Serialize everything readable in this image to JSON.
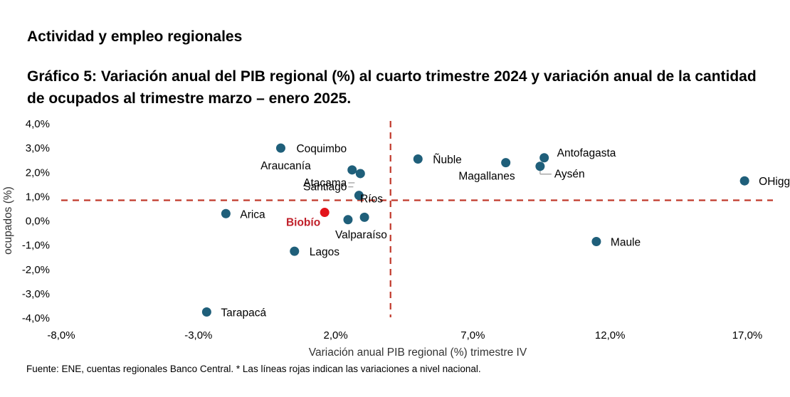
{
  "header": {
    "section_title": "Actividad y empleo regionales",
    "chart_title": "Gráfico 5: Variación anual del PIB regional (%) al cuarto trimestre 2024 y variación anual de la cantidad de ocupados al trimestre marzo – enero 2025."
  },
  "footnote": "Fuente: ENE, cuentas regionales Banco Central. * Las líneas rojas indican las variaciones a nivel nacional.",
  "chart_data": {
    "type": "scatter",
    "xlabel": "Variación anual PIB regional (%) trimestre IV",
    "ylabel": "ocupados (%)",
    "xlim": [
      -8,
      19
    ],
    "ylim": [
      -4,
      4
    ],
    "xticks": [
      -8,
      -3,
      2,
      7,
      12,
      17
    ],
    "xtick_labels": [
      "-8,0%",
      "-3,0%",
      "2,0%",
      "7,0%",
      "12,0%",
      "17,0%"
    ],
    "yticks": [
      4,
      3,
      2,
      1,
      0,
      -1,
      -2,
      -3,
      -4
    ],
    "ytick_labels": [
      "4,0%",
      "3,0%",
      "2,0%",
      "1,0%",
      "0,0%",
      "-1,0%",
      "-2,0%",
      "-3,0%",
      "-4,0%"
    ],
    "reference_lines": {
      "x": 4.0,
      "y": 0.85,
      "color": "#c0392b"
    },
    "colors": {
      "point": "#1f5f7a",
      "highlight": "#e3141b",
      "highlight_label": "#c0202a",
      "leader": "#999999"
    },
    "points": [
      {
        "name": "Coquimbo",
        "x": 0.0,
        "y": 3.0,
        "label_dx": 22,
        "label_dy": 6,
        "anchor": "start"
      },
      {
        "name": "Araucanía",
        "x": 2.6,
        "y": 2.1,
        "label_dx": -58,
        "label_dy": -1,
        "anchor": "end"
      },
      {
        "name": "Atacama",
        "x": 2.9,
        "y": 1.95,
        "label_dx": -19,
        "label_dy": 18,
        "anchor": "end",
        "leader": true
      },
      {
        "name": "Santiago",
        "x": 2.85,
        "y": 1.05,
        "label_dx": -17,
        "label_dy": -7,
        "anchor": "end",
        "leader": true
      },
      {
        "name": "Ríos",
        "x": 3.05,
        "y": 0.15,
        "label_dx": -6,
        "label_dy": -21,
        "anchor": "start"
      },
      {
        "name": "Valparaíso",
        "x": 2.45,
        "y": 0.05,
        "label_dx": -18,
        "label_dy": 26,
        "anchor": "start"
      },
      {
        "name": "Biobío",
        "x": 1.6,
        "y": 0.35,
        "label_dx": -6,
        "label_dy": 19,
        "anchor": "end",
        "highlight": true
      },
      {
        "name": "Arica",
        "x": -2.0,
        "y": 0.3,
        "label_dx": 20,
        "label_dy": 6,
        "anchor": "start"
      },
      {
        "name": "Lagos",
        "x": 0.5,
        "y": -1.25,
        "label_dx": 21,
        "label_dy": 6,
        "anchor": "start"
      },
      {
        "name": "Tarapacá",
        "x": -2.7,
        "y": -3.75,
        "label_dx": 20,
        "label_dy": 6,
        "anchor": "start"
      },
      {
        "name": "Ñuble",
        "x": 5.0,
        "y": 2.55,
        "label_dx": 21,
        "label_dy": 6,
        "anchor": "start"
      },
      {
        "name": "Magallanes",
        "x": 8.2,
        "y": 2.4,
        "label_dx": 13,
        "label_dy": 24,
        "anchor": "end"
      },
      {
        "name": "Antofagasta",
        "x": 9.6,
        "y": 2.6,
        "label_dx": 18,
        "label_dy": -2,
        "anchor": "start"
      },
      {
        "name": "Aysén",
        "x": 9.45,
        "y": 2.25,
        "label_dx": 20,
        "label_dy": 16,
        "anchor": "start",
        "leader": true
      },
      {
        "name": "Maule",
        "x": 11.5,
        "y": -0.85,
        "label_dx": 20,
        "label_dy": 6,
        "anchor": "start"
      },
      {
        "name": "OHiggins",
        "x": 16.9,
        "y": 1.65,
        "label_dx": 20,
        "label_dy": 6,
        "anchor": "start"
      }
    ]
  }
}
